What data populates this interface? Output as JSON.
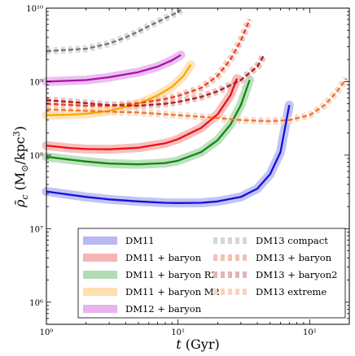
{
  "chart_data": {
    "type": "line",
    "xlabel": "t (Gyr)",
    "ylabel": "ρ̄_c (M_⊙/kpc³)",
    "xscale": "log",
    "yscale": "log",
    "xlim": [
      1,
      200
    ],
    "ylim": [
      500000,
      10000000000
    ],
    "grid": false,
    "legend_position": "bottom-right",
    "x_ticks": [
      {
        "value": 1,
        "label": "10⁰"
      },
      {
        "value": 10,
        "label": "10¹"
      },
      {
        "value": 100,
        "label": "10²"
      }
    ],
    "y_ticks": [
      {
        "value": 1000000,
        "label": "10⁶"
      },
      {
        "value": 10000000,
        "label": "10⁷"
      },
      {
        "value": 100000000,
        "label": "10⁸"
      },
      {
        "value": 1000000000,
        "label": "10⁹"
      },
      {
        "value": 10000000000,
        "label": "10¹⁰"
      }
    ],
    "series": [
      {
        "name": "DM11",
        "color": "#1111dd",
        "style": "solid",
        "band_color": "#b8b8f2",
        "x": [
          1,
          1.5,
          2,
          3,
          5,
          8,
          10,
          15,
          20,
          30,
          40,
          50,
          60,
          70
        ],
        "y": [
          32000000,
          29000000,
          27000000,
          25000000,
          23500000,
          22500000,
          22300000,
          22500000,
          23500000,
          27000000,
          35000000,
          55000000,
          110000000,
          480000000
        ]
      },
      {
        "name": "DM11 + baryon",
        "color": "#ee1111",
        "style": "solid",
        "band_color": "#f7b4b4",
        "x": [
          1,
          1.5,
          2,
          3,
          5,
          8,
          10,
          15,
          20,
          25,
          28
        ],
        "y": [
          135000000,
          125000000,
          121000000,
          120000000,
          126000000,
          145000000,
          165000000,
          235000000,
          360000000,
          650000000,
          1100000000
        ]
      },
      {
        "name": "DM11 + baryon R2",
        "color": "#118811",
        "style": "solid",
        "band_color": "#b3dcb3",
        "x": [
          1,
          1.5,
          2,
          3,
          5,
          8,
          10,
          15,
          20,
          25,
          30,
          35
        ],
        "y": [
          95000000,
          87000000,
          82000000,
          77000000,
          75000000,
          78000000,
          84000000,
          110000000,
          160000000,
          260000000,
          480000000,
          1050000000
        ]
      },
      {
        "name": "DM11 + baryon M2",
        "color": "#ffa500",
        "style": "solid",
        "band_color": "#fde0b0",
        "x": [
          1,
          1.5,
          2,
          3,
          5,
          7,
          9,
          11,
          12.5
        ],
        "y": [
          350000000,
          355000000,
          365000000,
          400000000,
          500000000,
          650000000,
          850000000,
          1200000000,
          1700000000
        ]
      },
      {
        "name": "DM12 + baryon",
        "color": "#aa11aa",
        "style": "solid",
        "band_color": "#e8b4ec",
        "x": [
          1,
          2,
          3,
          5,
          7,
          9,
          10.5
        ],
        "y": [
          1000000000,
          1050000000,
          1150000000,
          1350000000,
          1600000000,
          1950000000,
          2300000000
        ]
      },
      {
        "name": "DM13 compact",
        "color": "#777777",
        "style": "dashed",
        "band_color": "#d6d6d6",
        "x": [
          1,
          2,
          3,
          4,
          5,
          6,
          7,
          8,
          9,
          10,
          10.5
        ],
        "y": [
          2600000000,
          2800000000,
          3300000000,
          4000000000,
          4800000000,
          5700000000,
          6500000000,
          7300000000,
          8100000000,
          8800000000,
          9500000000
        ]
      },
      {
        "name": "DM13 + baryon",
        "color": "#ee4422",
        "style": "dashed",
        "band_color": "#f6c0b3",
        "x": [
          1,
          2,
          3,
          5,
          8,
          10,
          15,
          20,
          25,
          30,
          35
        ],
        "y": [
          500000000,
          470000000,
          470000000,
          510000000,
          580000000,
          640000000,
          820000000,
          1200000000,
          2000000000,
          3600000000,
          7000000000
        ]
      },
      {
        "name": "DM13 + baryon2",
        "color": "#aa2222",
        "style": "dashed",
        "band_color": "#e5b4b4",
        "x": [
          1,
          2,
          3,
          5,
          8,
          10,
          15,
          20,
          30,
          40,
          45
        ],
        "y": [
          560000000,
          510000000,
          480000000,
          470000000,
          500000000,
          530000000,
          620000000,
          740000000,
          1050000000,
          1600000000,
          2300000000
        ]
      },
      {
        "name": "DM13 extreme",
        "color": "#ee7733",
        "style": "dashed",
        "band_color": "#f9d3bd",
        "x": [
          1,
          2,
          5,
          10,
          20,
          30,
          50,
          70,
          100,
          130,
          160,
          190
        ],
        "y": [
          420000000,
          400000000,
          380000000,
          350000000,
          320000000,
          300000000,
          290000000,
          300000000,
          350000000,
          480000000,
          720000000,
          1100000000
        ]
      }
    ]
  }
}
